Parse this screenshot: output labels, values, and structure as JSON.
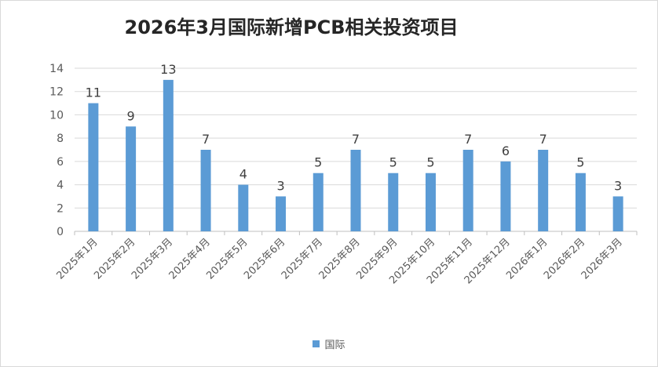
{
  "chart_data": {
    "type": "bar",
    "title": "2026年3月国际新增PCB相关投资项目",
    "xlabel": "",
    "ylabel": "",
    "categories": [
      "2025年1月",
      "2025年2月",
      "2025年3月",
      "2025年4月",
      "2025年5月",
      "2025年6月",
      "2025年7月",
      "2025年8月",
      "2025年9月",
      "2025年10月",
      "2025年11月",
      "2025年12月",
      "2026年1月",
      "2026年2月",
      "2026年3月"
    ],
    "series": [
      {
        "name": "国际",
        "values": [
          11,
          9,
          13,
          7,
          4,
          3,
          5,
          7,
          5,
          5,
          7,
          6,
          7,
          5,
          3
        ],
        "color": "#5b9bd5"
      }
    ],
    "ylim": [
      0,
      14
    ],
    "yticks": [
      0,
      2,
      4,
      6,
      8,
      10,
      12,
      14
    ],
    "grid": true,
    "data_labels": true,
    "legend_position": "bottom"
  }
}
